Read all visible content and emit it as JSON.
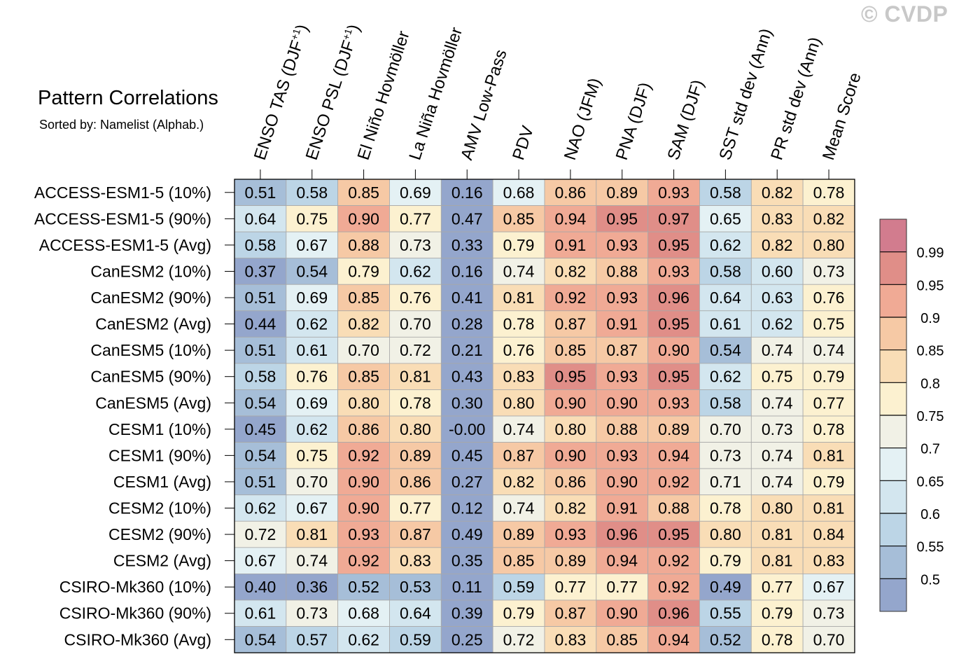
{
  "watermark": "© CVDP",
  "chart_data": {
    "type": "heatmap",
    "title": "Pattern Correlations",
    "subtitle": "Sorted by: Namelist (Alphab.)",
    "columns": [
      {
        "text": "ENSO TAS (DJF",
        "sup": "+1",
        "tail": ")"
      },
      {
        "text": "ENSO PSL (DJF",
        "sup": "+1",
        "tail": ")"
      },
      {
        "text": "El Niño Hovmöller",
        "sup": "",
        "tail": ""
      },
      {
        "text": "La Niña Hovmöller",
        "sup": "",
        "tail": ""
      },
      {
        "text": "AMV Low-Pass",
        "sup": "",
        "tail": ""
      },
      {
        "text": "PDV",
        "sup": "",
        "tail": ""
      },
      {
        "text": "NAO (JFM)",
        "sup": "",
        "tail": ""
      },
      {
        "text": "PNA (DJF)",
        "sup": "",
        "tail": ""
      },
      {
        "text": "SAM (DJF)",
        "sup": "",
        "tail": ""
      },
      {
        "text": "SST std dev (Ann)",
        "sup": "",
        "tail": ""
      },
      {
        "text": "PR std dev (Ann)",
        "sup": "",
        "tail": ""
      },
      {
        "text": "Mean Score",
        "sup": "",
        "tail": ""
      }
    ],
    "rows": [
      "ACCESS-ESM1-5 (10%)",
      "ACCESS-ESM1-5 (90%)",
      "ACCESS-ESM1-5 (Avg)",
      "CanESM2 (10%)",
      "CanESM2 (90%)",
      "CanESM2 (Avg)",
      "CanESM5 (10%)",
      "CanESM5 (90%)",
      "CanESM5 (Avg)",
      "CESM1 (10%)",
      "CESM1 (90%)",
      "CESM1 (Avg)",
      "CESM2 (10%)",
      "CESM2 (90%)",
      "CESM2 (Avg)",
      "CSIRO-Mk360 (10%)",
      "CSIRO-Mk360 (90%)",
      "CSIRO-Mk360 (Avg)"
    ],
    "values": [
      [
        "0.51",
        "0.58",
        "0.85",
        "0.69",
        "0.16",
        "0.68",
        "0.86",
        "0.89",
        "0.93",
        "0.58",
        "0.82",
        "0.78"
      ],
      [
        "0.64",
        "0.75",
        "0.90",
        "0.77",
        "0.47",
        "0.85",
        "0.94",
        "0.95",
        "0.97",
        "0.65",
        "0.83",
        "0.82"
      ],
      [
        "0.58",
        "0.67",
        "0.88",
        "0.73",
        "0.33",
        "0.79",
        "0.91",
        "0.93",
        "0.95",
        "0.62",
        "0.82",
        "0.80"
      ],
      [
        "0.37",
        "0.54",
        "0.79",
        "0.62",
        "0.16",
        "0.74",
        "0.82",
        "0.88",
        "0.93",
        "0.58",
        "0.60",
        "0.73"
      ],
      [
        "0.51",
        "0.69",
        "0.85",
        "0.76",
        "0.41",
        "0.81",
        "0.92",
        "0.93",
        "0.96",
        "0.64",
        "0.63",
        "0.76"
      ],
      [
        "0.44",
        "0.62",
        "0.82",
        "0.70",
        "0.28",
        "0.78",
        "0.87",
        "0.91",
        "0.95",
        "0.61",
        "0.62",
        "0.75"
      ],
      [
        "0.51",
        "0.61",
        "0.70",
        "0.72",
        "0.21",
        "0.76",
        "0.85",
        "0.87",
        "0.90",
        "0.54",
        "0.74",
        "0.74"
      ],
      [
        "0.58",
        "0.76",
        "0.85",
        "0.81",
        "0.43",
        "0.83",
        "0.95",
        "0.93",
        "0.95",
        "0.62",
        "0.75",
        "0.79"
      ],
      [
        "0.54",
        "0.69",
        "0.80",
        "0.78",
        "0.30",
        "0.80",
        "0.90",
        "0.90",
        "0.93",
        "0.58",
        "0.74",
        "0.77"
      ],
      [
        "0.45",
        "0.62",
        "0.86",
        "0.80",
        "-0.00",
        "0.74",
        "0.80",
        "0.88",
        "0.89",
        "0.70",
        "0.73",
        "0.78"
      ],
      [
        "0.54",
        "0.75",
        "0.92",
        "0.89",
        "0.45",
        "0.87",
        "0.90",
        "0.93",
        "0.94",
        "0.73",
        "0.74",
        "0.81"
      ],
      [
        "0.51",
        "0.70",
        "0.90",
        "0.86",
        "0.27",
        "0.82",
        "0.86",
        "0.90",
        "0.92",
        "0.71",
        "0.74",
        "0.79"
      ],
      [
        "0.62",
        "0.67",
        "0.90",
        "0.77",
        "0.12",
        "0.74",
        "0.82",
        "0.91",
        "0.88",
        "0.78",
        "0.80",
        "0.81"
      ],
      [
        "0.72",
        "0.81",
        "0.93",
        "0.87",
        "0.49",
        "0.89",
        "0.93",
        "0.96",
        "0.95",
        "0.80",
        "0.81",
        "0.84"
      ],
      [
        "0.67",
        "0.74",
        "0.92",
        "0.83",
        "0.35",
        "0.85",
        "0.89",
        "0.94",
        "0.92",
        "0.79",
        "0.81",
        "0.83"
      ],
      [
        "0.40",
        "0.36",
        "0.52",
        "0.53",
        "0.11",
        "0.59",
        "0.77",
        "0.77",
        "0.92",
        "0.49",
        "0.77",
        "0.67"
      ],
      [
        "0.61",
        "0.73",
        "0.68",
        "0.64",
        "0.39",
        "0.79",
        "0.87",
        "0.90",
        "0.96",
        "0.55",
        "0.79",
        "0.73"
      ],
      [
        "0.54",
        "0.57",
        "0.62",
        "0.59",
        "0.25",
        "0.72",
        "0.83",
        "0.85",
        "0.94",
        "0.52",
        "0.78",
        "0.70"
      ]
    ],
    "colorbar": {
      "levels": [
        "0.5",
        "0.55",
        "0.6",
        "0.65",
        "0.7",
        "0.75",
        "0.8",
        "0.85",
        "0.9",
        "0.95",
        "0.99"
      ],
      "colors": [
        "#94a6cc",
        "#a6bed8",
        "#bcd5e6",
        "#d3e6ef",
        "#e4f1f4",
        "#f1f1e6",
        "#fcf1d0",
        "#f9ddb6",
        "#f6c9a5",
        "#f0aa95",
        "#e08e88",
        "#d27c8e"
      ]
    }
  }
}
